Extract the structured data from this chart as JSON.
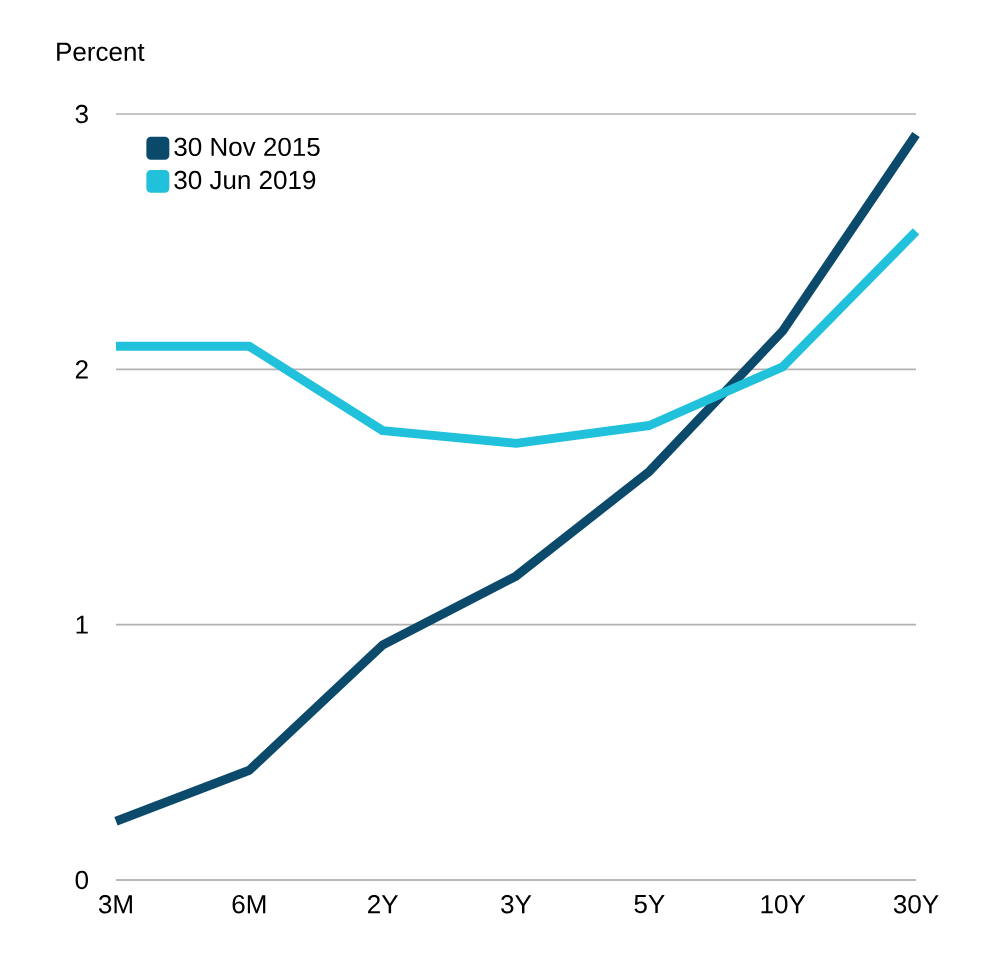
{
  "chart_data": {
    "type": "line",
    "ylabel": "Percent",
    "categories": [
      "3M",
      "6M",
      "2Y",
      "3Y",
      "5Y",
      "10Y",
      "30Y"
    ],
    "series": [
      {
        "name": "30 Nov 2015",
        "color": "#0b4a6b",
        "values": [
          0.23,
          0.43,
          0.92,
          1.19,
          1.6,
          2.15,
          2.92
        ]
      },
      {
        "name": "30 Jun 2019",
        "color": "#21c1dc",
        "values": [
          2.09,
          2.09,
          1.76,
          1.71,
          1.78,
          2.01,
          2.54
        ]
      }
    ],
    "ylim": [
      0,
      3
    ],
    "yticks": [
      0,
      1,
      2,
      3
    ],
    "grid": "y",
    "legend": "top left",
    "line_style": "solid",
    "marker": "none"
  }
}
